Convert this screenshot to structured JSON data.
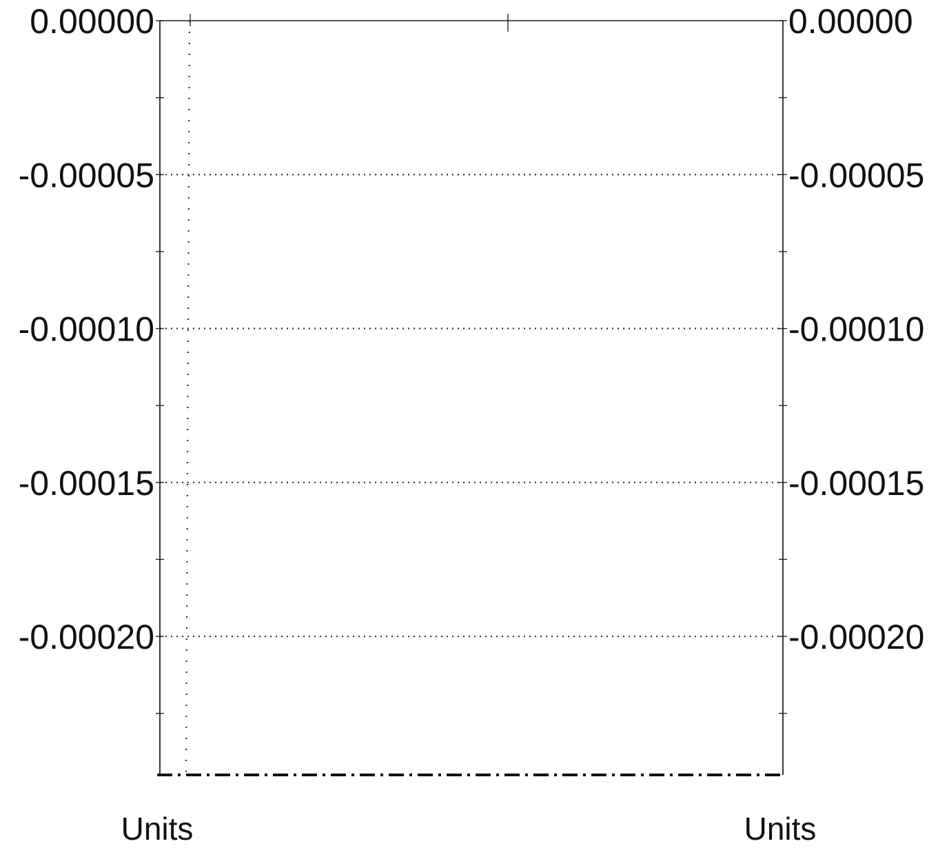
{
  "chart_data": {
    "type": "line",
    "title": "",
    "x": [
      0,
      1
    ],
    "series": [
      {
        "style": "dotted",
        "values": [
          0.0,
          -0.000245
        ]
      },
      {
        "style": "dash-dot",
        "values": [
          -0.000245,
          -0.000245
        ]
      }
    ],
    "left_axis": {
      "ylim": [
        -0.000245,
        0.0
      ],
      "ticks": [
        0.0,
        -5e-05,
        -0.0001,
        -0.00015,
        -0.0002
      ],
      "tick_labels": [
        "0.00000",
        "-0.00005",
        "-0.00010",
        "-0.00015",
        "-0.00020"
      ],
      "unit_label": "Units"
    },
    "right_axis": {
      "ylim": [
        -0.000245,
        0.0
      ],
      "ticks": [
        0.0,
        -5e-05,
        -0.0001,
        -0.00015,
        -0.0002
      ],
      "tick_labels": [
        "0.00000",
        "-0.00005",
        "-0.00010",
        "-0.00015",
        "-0.00020"
      ],
      "unit_label": "Units"
    },
    "grid": true,
    "legend": "none"
  },
  "colors": {
    "axis": "#222222",
    "grid": "#333333",
    "text": "#111111"
  }
}
